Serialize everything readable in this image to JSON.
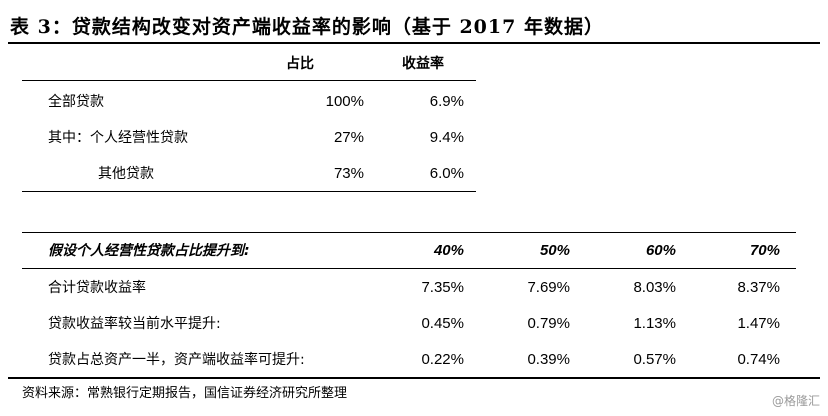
{
  "title": "表 3：贷款结构改变对资产端收益率的影响（基于 2017 年数据）",
  "table1": {
    "headers": [
      "占比",
      "收益率"
    ],
    "rows": [
      {
        "label": "全部贷款",
        "share": "100%",
        "yield": "6.9%"
      },
      {
        "label": "其中：个人经营性贷款",
        "share": "27%",
        "yield": "9.4%"
      },
      {
        "label": "其他贷款",
        "share": "73%",
        "yield": "6.0%"
      }
    ]
  },
  "table2": {
    "header_label": "假设个人经营性贷款占比提升到:",
    "headers": [
      "40%",
      "50%",
      "60%",
      "70%"
    ],
    "rows": [
      {
        "label": "合计贷款收益率",
        "values": [
          "7.35%",
          "7.69%",
          "8.03%",
          "8.37%"
        ]
      },
      {
        "label": "贷款收益率较当前水平提升:",
        "values": [
          "0.45%",
          "0.79%",
          "1.13%",
          "1.47%"
        ]
      },
      {
        "label": "贷款占总资产一半，资产端收益率可提升:",
        "values": [
          "0.22%",
          "0.39%",
          "0.57%",
          "0.74%"
        ]
      }
    ]
  },
  "source": "资料来源：常熟银行定期报告，国信证券经济研究所整理",
  "watermark": "@格隆汇"
}
